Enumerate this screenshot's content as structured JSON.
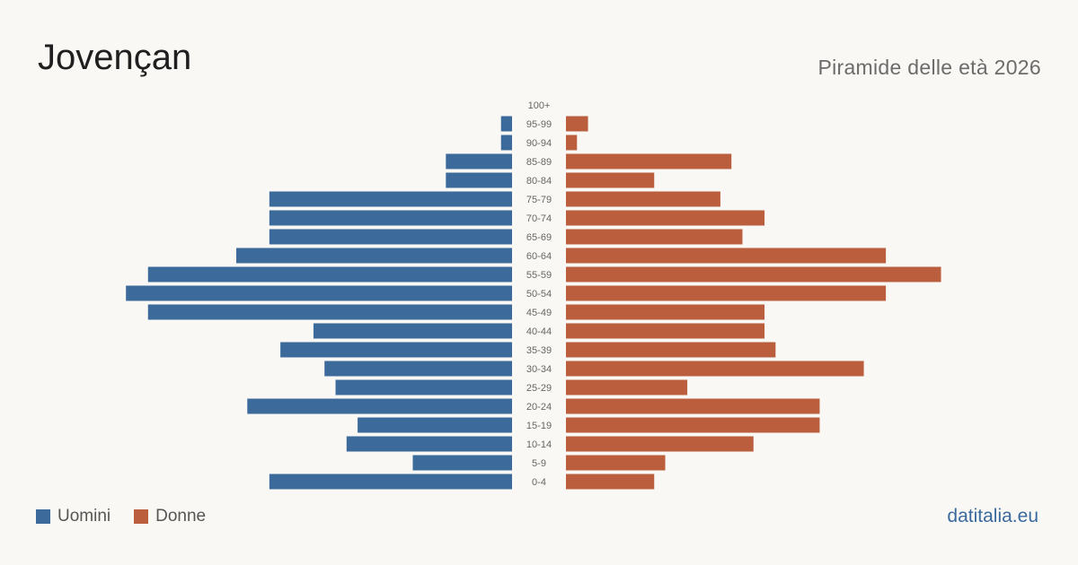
{
  "header": {
    "title": "Jovençan",
    "subtitle": "Piramide delle età 2026"
  },
  "legend": {
    "men_label": "Uomini",
    "women_label": "Donne"
  },
  "brand": "datitalia.eu",
  "colors": {
    "men": "#3b6a9b",
    "women": "#bb5e3d",
    "background": "#faf8f4",
    "age_label": "#666666"
  },
  "chart_data": {
    "type": "bar",
    "orientation": "horizontal-population-pyramid",
    "title": "Jovençan",
    "subtitle": "Piramide delle età 2026",
    "categories": [
      "100+",
      "95-99",
      "90-94",
      "85-89",
      "80-84",
      "75-79",
      "70-74",
      "65-69",
      "60-64",
      "55-59",
      "50-54",
      "45-49",
      "40-44",
      "35-39",
      "30-34",
      "25-29",
      "20-24",
      "15-19",
      "10-14",
      "5-9",
      "0-4"
    ],
    "series": [
      {
        "name": "Uomini",
        "values": [
          0,
          1,
          1,
          6,
          6,
          22,
          22,
          22,
          25,
          33,
          35,
          33,
          18,
          21,
          17,
          16,
          24,
          14,
          15,
          9,
          22
        ]
      },
      {
        "name": "Donne",
        "values": [
          0,
          2,
          1,
          15,
          8,
          14,
          18,
          16,
          29,
          34,
          29,
          18,
          18,
          19,
          27,
          11,
          23,
          23,
          17,
          9,
          8
        ]
      }
    ],
    "legend_position": "bottom-left",
    "grid": false
  }
}
